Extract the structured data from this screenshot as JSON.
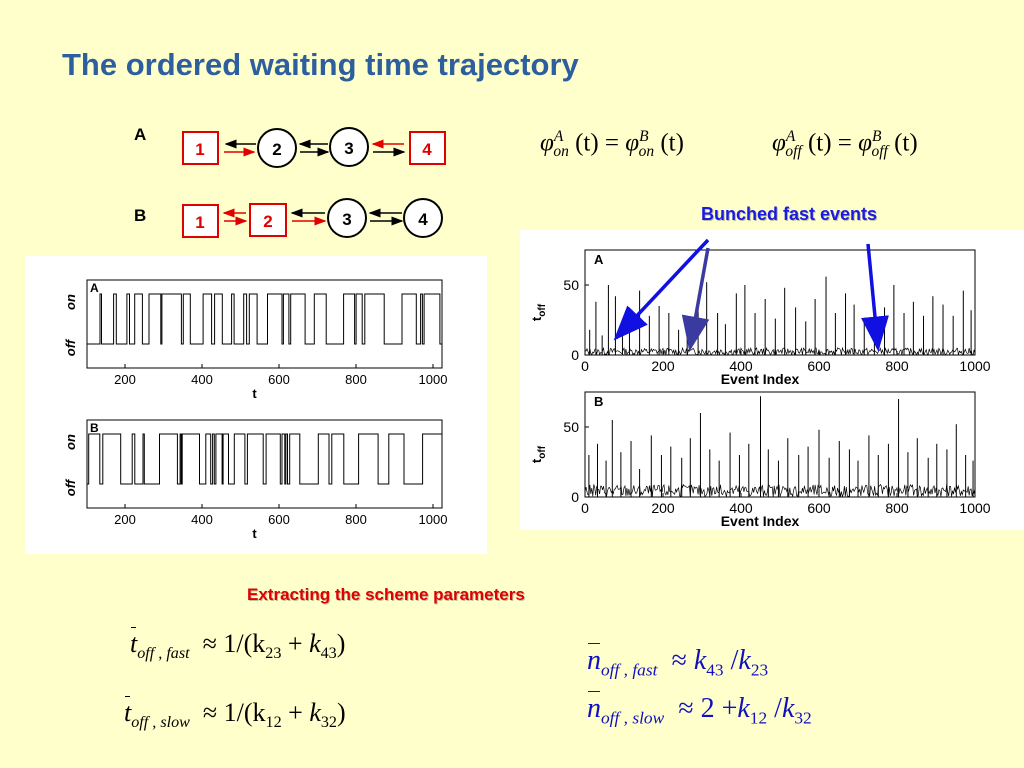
{
  "slide": {
    "title": "The ordered waiting time trajectory",
    "colors": {
      "background": "#ffffcc",
      "title": "#2d5f9e",
      "red": "#e00000",
      "blue": "#1a1ae6"
    }
  },
  "schemes": {
    "A": {
      "label": "A",
      "states": [
        "1",
        "2",
        "3",
        "4"
      ],
      "boxed_states": [
        "1",
        "4"
      ]
    },
    "B": {
      "label": "B",
      "states": [
        "1",
        "2",
        "3",
        "4"
      ],
      "boxed_states": [
        "1",
        "2"
      ]
    }
  },
  "equations_top": {
    "phi_on": {
      "lhs_sup": "A",
      "lhs_sub": "on",
      "arg": "(t)",
      "eq": "=",
      "rhs_sup": "B",
      "rhs_sub": "on"
    },
    "phi_off": {
      "lhs_sup": "A",
      "lhs_sub": "off",
      "arg": "(t)",
      "eq": "=",
      "rhs_sup": "B",
      "rhs_sub": "off"
    }
  },
  "labels": {
    "bunched": "Bunched fast events",
    "extracting": "Extracting the scheme parameters"
  },
  "trajectory_plots": {
    "panels": [
      {
        "label": "A",
        "y_top": "on",
        "y_bottom": "off",
        "xlabel": "t"
      },
      {
        "label": "B",
        "y_top": "on",
        "y_bottom": "off",
        "xlabel": "t"
      }
    ],
    "x_ticks": [
      "200",
      "400",
      "600",
      "800",
      "1000"
    ]
  },
  "chart_data": [
    {
      "type": "line",
      "panel": "A",
      "title": "A",
      "xlabel": "Event Index",
      "ylabel": "t_off",
      "ylabel_main": "t",
      "ylabel_sub": "off",
      "xlim": [
        0,
        1000
      ],
      "ylim": [
        0,
        75
      ],
      "x_ticks": [
        "0",
        "200",
        "400",
        "600",
        "800",
        "1000"
      ],
      "y_ticks": [
        "0",
        "50"
      ],
      "spikes": [
        [
          12,
          18
        ],
        [
          28,
          38
        ],
        [
          44,
          14
        ],
        [
          60,
          50
        ],
        [
          78,
          42
        ],
        [
          96,
          24
        ],
        [
          114,
          20
        ],
        [
          140,
          46
        ],
        [
          165,
          28
        ],
        [
          190,
          35
        ],
        [
          215,
          30
        ],
        [
          240,
          18
        ],
        [
          262,
          26
        ],
        [
          290,
          38
        ],
        [
          312,
          52
        ],
        [
          340,
          30
        ],
        [
          360,
          22
        ],
        [
          388,
          44
        ],
        [
          410,
          50
        ],
        [
          436,
          30
        ],
        [
          462,
          40
        ],
        [
          488,
          26
        ],
        [
          512,
          48
        ],
        [
          540,
          34
        ],
        [
          566,
          24
        ],
        [
          590,
          40
        ],
        [
          618,
          56
        ],
        [
          642,
          30
        ],
        [
          668,
          44
        ],
        [
          690,
          36
        ],
        [
          716,
          26
        ],
        [
          742,
          40
        ],
        [
          768,
          34
        ],
        [
          792,
          50
        ],
        [
          818,
          30
        ],
        [
          842,
          38
        ],
        [
          868,
          28
        ],
        [
          892,
          42
        ],
        [
          918,
          36
        ],
        [
          944,
          28
        ],
        [
          970,
          46
        ],
        [
          990,
          32
        ]
      ]
    },
    {
      "type": "line",
      "panel": "B",
      "title": "B",
      "xlabel": "Event Index",
      "ylabel": "t_off",
      "ylabel_main": "t",
      "ylabel_sub": "off",
      "xlim": [
        0,
        1000
      ],
      "ylim": [
        0,
        75
      ],
      "x_ticks": [
        "0",
        "200",
        "400",
        "600",
        "800",
        "1000"
      ],
      "y_ticks": [
        "0",
        "50"
      ],
      "spikes": [
        [
          10,
          30
        ],
        [
          32,
          38
        ],
        [
          54,
          26
        ],
        [
          70,
          55
        ],
        [
          92,
          32
        ],
        [
          118,
          40
        ],
        [
          140,
          20
        ],
        [
          170,
          44
        ],
        [
          196,
          30
        ],
        [
          220,
          36
        ],
        [
          248,
          28
        ],
        [
          270,
          42
        ],
        [
          296,
          60
        ],
        [
          320,
          34
        ],
        [
          344,
          26
        ],
        [
          372,
          46
        ],
        [
          396,
          30
        ],
        [
          420,
          38
        ],
        [
          450,
          72
        ],
        [
          470,
          34
        ],
        [
          496,
          26
        ],
        [
          520,
          42
        ],
        [
          548,
          30
        ],
        [
          572,
          36
        ],
        [
          600,
          48
        ],
        [
          626,
          28
        ],
        [
          652,
          40
        ],
        [
          678,
          34
        ],
        [
          700,
          26
        ],
        [
          728,
          44
        ],
        [
          752,
          30
        ],
        [
          778,
          38
        ],
        [
          804,
          70
        ],
        [
          828,
          32
        ],
        [
          852,
          42
        ],
        [
          880,
          28
        ],
        [
          902,
          38
        ],
        [
          928,
          34
        ],
        [
          952,
          52
        ],
        [
          976,
          30
        ],
        [
          995,
          26
        ]
      ]
    }
  ],
  "equations_bottom": {
    "t_fast": {
      "sub": "off , fast",
      "rhs": "1/(k",
      "k1": "23",
      "plus": "+",
      "k2_pre": "k",
      "k2": "43",
      "close": ")"
    },
    "t_slow": {
      "sub": "off , slow",
      "rhs": "1/(k",
      "k1": "12",
      "plus": "+",
      "k2_pre": "k",
      "k2": "32",
      "close": ")"
    },
    "n_fast": {
      "sub": "off , fast",
      "k1": "43",
      "k2": "23"
    },
    "n_slow": {
      "sub": "off , slow",
      "const": "2",
      "k1": "12",
      "k2": "32"
    }
  }
}
